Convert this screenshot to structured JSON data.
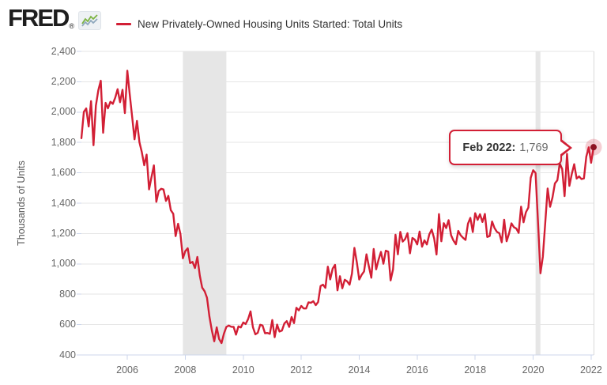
{
  "brand": {
    "name": "FRED",
    "registered": "®",
    "icon": "sparkline-chart-icon"
  },
  "legend": {
    "label": "New Privately-Owned Housing Units Started: Total Units",
    "color": "#d21f35"
  },
  "tooltip": {
    "date": "Feb 2022:",
    "value": "1,769"
  },
  "axes": {
    "y_title": "Thousands of Units",
    "y_tick_labels": [
      "2,400",
      "2,200",
      "2,000",
      "1,800",
      "1,600",
      "1,400",
      "1,200",
      "1,000",
      "800",
      "600",
      "400"
    ],
    "x_tick_labels": [
      "2006",
      "2008",
      "2010",
      "2012",
      "2014",
      "2016",
      "2018",
      "2020",
      "2022"
    ]
  },
  "colors": {
    "line": "#d21f35",
    "marker_dot": "#8e1322",
    "marker_halo": "rgba(210,31,53,0.22)",
    "recession_band": "#e6e6e6",
    "grid": "#e6e6e6",
    "axis_line": "#ccd6eb",
    "tick": "#ccd6eb",
    "plot_border": "#d9d9d9",
    "label_text": "#666666"
  },
  "chart_data": {
    "type": "line",
    "title": "New Privately-Owned Housing Units Started: Total Units",
    "ylabel": "Thousands of Units",
    "frequency": "monthly",
    "start_date": "2004-06",
    "end_date": "2022-02",
    "ylim": [
      400,
      2400
    ],
    "y_tick_step": 200,
    "x_tick_years": [
      2006,
      2008,
      2010,
      2012,
      2014,
      2016,
      2018,
      2020,
      2022
    ],
    "grid": "horizontal",
    "legend_position": "top",
    "recessions": [
      {
        "start": "2007-12",
        "end": "2009-06"
      },
      {
        "start": "2020-02",
        "end": "2020-04"
      }
    ],
    "highlight": {
      "label": "Feb 2022",
      "value": 1769
    },
    "values": [
      1828,
      2002,
      2024,
      1905,
      2072,
      1782,
      2042,
      2144,
      2207,
      1864,
      2061,
      2025,
      2068,
      2054,
      2095,
      2151,
      2065,
      2147,
      1994,
      2273,
      2119,
      1969,
      1821,
      1942,
      1802,
      1737,
      1650,
      1720,
      1491,
      1570,
      1649,
      1409,
      1480,
      1495,
      1490,
      1415,
      1448,
      1354,
      1330,
      1183,
      1264,
      1197,
      1037,
      1084,
      1103,
      1005,
      1013,
      973,
      1046,
      923,
      844,
      820,
      777,
      652,
      560,
      490,
      582,
      505,
      478,
      540,
      585,
      594,
      586,
      585,
      534,
      588,
      581,
      614,
      604,
      636,
      687,
      583,
      536,
      546,
      599,
      594,
      543,
      545,
      539,
      630,
      517,
      600,
      554,
      561,
      608,
      623,
      585,
      650,
      610,
      711,
      694,
      723,
      706,
      706,
      747,
      744,
      754,
      728,
      749,
      854,
      863,
      842,
      982,
      898,
      969,
      994,
      826,
      919,
      839,
      896,
      885,
      863,
      936,
      1105,
      1010,
      897,
      928,
      950,
      1063,
      984,
      909,
      1098,
      964,
      1028,
      1079,
      1001,
      1087,
      1080,
      891,
      964,
      1192,
      1063,
      1211,
      1147,
      1164,
      1202,
      1070,
      1171,
      1160,
      1128,
      1213,
      1113,
      1155,
      1128,
      1195,
      1226,
      1168,
      1062,
      1328,
      1149,
      1268,
      1236,
      1288,
      1189,
      1154,
      1129,
      1217,
      1188,
      1172,
      1158,
      1265,
      1303,
      1210,
      1334,
      1290,
      1327,
      1276,
      1329,
      1177,
      1184,
      1279,
      1236,
      1211,
      1202,
      1142,
      1291,
      1149,
      1199,
      1267,
      1242,
      1233,
      1204,
      1377,
      1274,
      1340,
      1371,
      1567,
      1617,
      1599,
      1276,
      938,
      1046,
      1273,
      1497,
      1376,
      1437,
      1530,
      1551,
      1661,
      1625,
      1447,
      1725,
      1514,
      1594,
      1657,
      1562,
      1576,
      1559,
      1563,
      1706,
      1768,
      1666,
      1769
    ]
  }
}
